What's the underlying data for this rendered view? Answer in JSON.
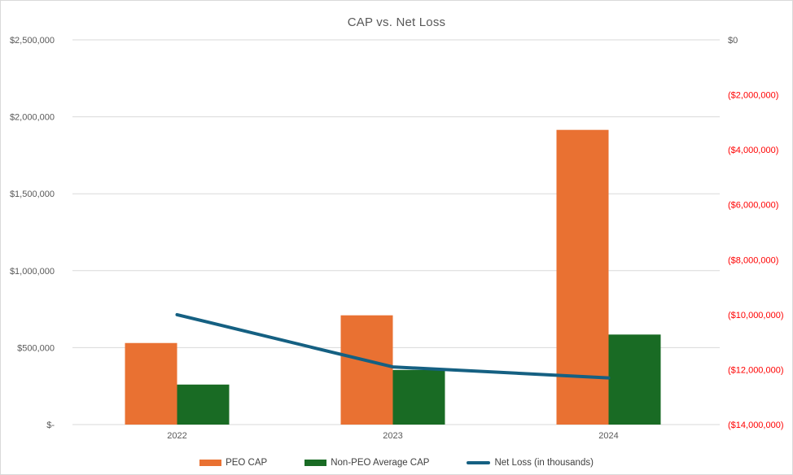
{
  "chart_data": {
    "type": "combo",
    "subtype": "grouped bars (primary axis) + line (secondary axis)",
    "title": "CAP vs. Net Loss",
    "categories": [
      "2022",
      "2023",
      "2024"
    ],
    "series": [
      {
        "name": "PEO CAP",
        "chart": "bar",
        "axis": "left",
        "color": "#E97132",
        "values": [
          530000,
          710000,
          1915000
        ]
      },
      {
        "name": "Non-PEO Average CAP",
        "chart": "bar",
        "axis": "left",
        "color": "#196B24",
        "values": [
          260000,
          355000,
          585000
        ]
      },
      {
        "name": "Net Loss (in thousands)",
        "chart": "line",
        "axis": "right",
        "color": "#156082",
        "values": [
          -10000000,
          -11900000,
          -12300000
        ]
      }
    ],
    "left_axis": {
      "min": 0,
      "max": 2500000,
      "tick_step": 500000,
      "text_color": "#595959",
      "ticks": [
        {
          "label": "$2,500,000",
          "value": 2500000
        },
        {
          "label": "$2,000,000",
          "value": 2000000
        },
        {
          "label": "$1,500,000",
          "value": 1500000
        },
        {
          "label": "$1,000,000",
          "value": 1000000
        },
        {
          "label": "$500,000",
          "value": 500000
        },
        {
          "label": "$-",
          "value": 0
        }
      ]
    },
    "right_axis": {
      "min": -14000000,
      "max": 0,
      "tick_step": -2000000,
      "negative_text_color": "#FF0000",
      "zero_text_color": "#595959",
      "ticks": [
        {
          "label": "$0",
          "value": 0,
          "color": "#595959"
        },
        {
          "label": "($2,000,000)",
          "value": -2000000,
          "color": "#FF0000"
        },
        {
          "label": "($4,000,000)",
          "value": -4000000,
          "color": "#FF0000"
        },
        {
          "label": "($6,000,000)",
          "value": -6000000,
          "color": "#FF0000"
        },
        {
          "label": "($8,000,000)",
          "value": -8000000,
          "color": "#FF0000"
        },
        {
          "label": "($10,000,000)",
          "value": -10000000,
          "color": "#FF0000"
        },
        {
          "label": "($12,000,000)",
          "value": -12000000,
          "color": "#FF0000"
        },
        {
          "label": "($14,000,000)",
          "value": -14000000,
          "color": "#FF0000"
        }
      ]
    },
    "x_axis": {
      "text_color": "#595959"
    },
    "grid": {
      "on": true,
      "color": "#D9D9D9"
    },
    "legend_position": "bottom",
    "title_color": "#595959",
    "background": "#FFFFFF"
  }
}
